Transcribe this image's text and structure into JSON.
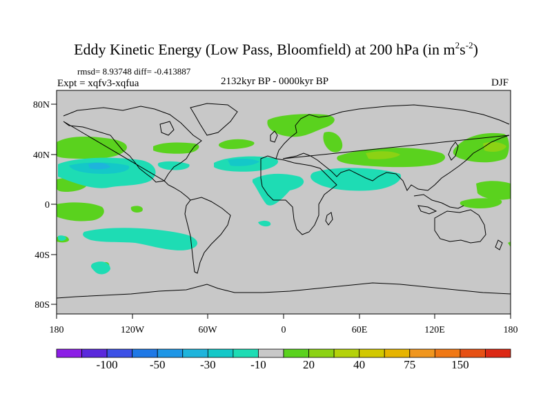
{
  "title": "Eddy Kinetic Energy (Low Pass, Bloomfield) at 200 hPa",
  "units_prefix": " (in m",
  "units_exp1": "2",
  "units_mid": "s",
  "units_exp2": "-2",
  "units_suffix": ")",
  "stats": "rmsd= 8.93748 diff= -0.413887",
  "experiment": "Expt = xqfv3-xqfua",
  "period": "2132kyr BP - 0000kyr BP",
  "season": "DJF",
  "lat_labels": [
    "80N",
    "40N",
    "0",
    "40S",
    "80S"
  ],
  "lon_labels": [
    "180",
    "120W",
    "60W",
    "0",
    "60E",
    "120E",
    "180"
  ],
  "colorbar": {
    "colors": [
      "#8c1ee6",
      "#5a28dc",
      "#3c50e6",
      "#1e78e6",
      "#1e96e6",
      "#1eb4dc",
      "#14c8c8",
      "#1edcb4",
      "#c8c8c8",
      "#5ad21e",
      "#8cd214",
      "#b4d20a",
      "#d2c800",
      "#e6b400",
      "#f0961e",
      "#f07814",
      "#e65014",
      "#dc2814"
    ],
    "labels": [
      "-100",
      "-50",
      "-30",
      "-10",
      "20",
      "40",
      "75",
      "150"
    ]
  },
  "colors": {
    "background": "#c8c8c8",
    "positive": "#5ad21e",
    "negative": "#1edcb4"
  }
}
